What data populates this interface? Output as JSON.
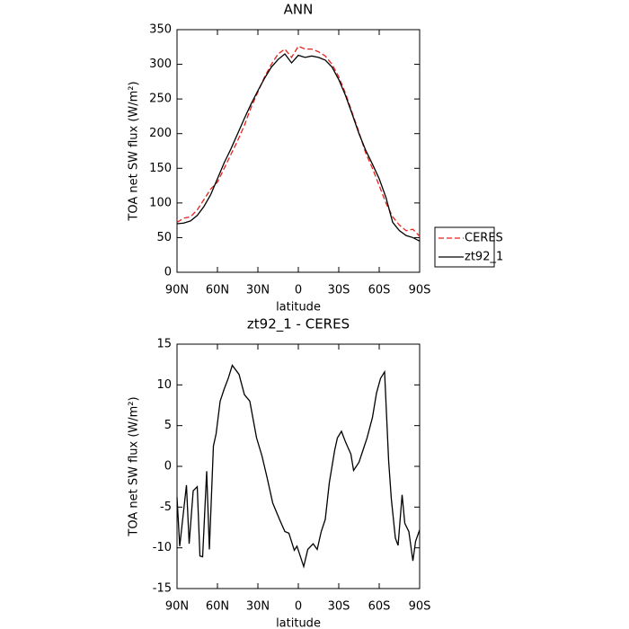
{
  "chart_data": [
    {
      "type": "line",
      "title": "ANN",
      "x_label": "latitude",
      "y_label": "TOA net SW flux (W/m²)",
      "x": [
        90,
        85,
        80,
        75,
        70,
        65,
        60,
        55,
        50,
        45,
        40,
        35,
        30,
        25,
        20,
        15,
        10,
        5,
        0,
        -5,
        -10,
        -15,
        -20,
        -25,
        -30,
        -35,
        -40,
        -45,
        -50,
        -55,
        -60,
        -65,
        -70,
        -75,
        -80,
        -85,
        -90
      ],
      "series": [
        {
          "name": "CERES",
          "color": "#e8201c",
          "dash": true,
          "values": [
            72,
            78,
            80,
            90,
            105,
            120,
            130,
            150,
            170,
            190,
            212,
            238,
            260,
            282,
            300,
            315,
            322,
            310,
            326,
            322,
            322,
            318,
            312,
            300,
            282,
            258,
            230,
            202,
            172,
            150,
            125,
            100,
            80,
            68,
            60,
            62,
            52
          ]
        },
        {
          "name": "zt92_1",
          "color": "#000000",
          "dash": false,
          "values": [
            70,
            71,
            74,
            82,
            95,
            112,
            135,
            158,
            178,
            200,
            222,
            243,
            262,
            280,
            296,
            307,
            315,
            302,
            313,
            310,
            312,
            310,
            306,
            296,
            278,
            255,
            228,
            200,
            176,
            156,
            135,
            108,
            72,
            60,
            53,
            50,
            45
          ]
        }
      ],
      "xlim": [
        90,
        -90
      ],
      "xticks": [
        {
          "value": 90,
          "label": "90N"
        },
        {
          "value": 60,
          "label": "60N"
        },
        {
          "value": 30,
          "label": "30N"
        },
        0,
        {
          "value": -30,
          "label": "30S"
        },
        {
          "value": -60,
          "label": "60S"
        },
        {
          "value": -90,
          "label": "90S"
        }
      ],
      "ylim": [
        0,
        350
      ],
      "yticks": [
        0,
        50,
        100,
        150,
        200,
        250,
        300,
        350
      ],
      "legend": "right"
    },
    {
      "type": "line",
      "title": "zt92_1 - CERES",
      "x_label": "latitude",
      "y_label": "TOA net SW flux (W/m²)",
      "x": [
        90,
        88,
        83,
        81,
        78,
        75,
        73,
        71,
        68,
        66,
        63,
        61,
        58,
        55,
        52,
        49,
        44,
        40,
        36,
        31,
        27,
        23,
        19,
        14,
        10,
        7,
        3,
        1,
        -4,
        -7,
        -11,
        -14,
        -17,
        -20,
        -23,
        -27,
        -29,
        -32,
        -35,
        -39,
        -41,
        -45,
        -48,
        -51,
        -55,
        -58,
        -61,
        -64,
        -67,
        -69,
        -72,
        -74,
        -77,
        -79,
        -82,
        -85,
        -87,
        -90
      ],
      "color": "#000000",
      "values": [
        -3.8,
        -9.8,
        -2.3,
        -9.5,
        -3,
        -2.5,
        -11,
        -11.1,
        -0.6,
        -10.2,
        2.5,
        4,
        8,
        9.5,
        10.8,
        12.4,
        11.3,
        8.8,
        8,
        3.5,
        1.3,
        -1.5,
        -4.5,
        -6.5,
        -8,
        -8.2,
        -10.3,
        -9.8,
        -12.3,
        -10.2,
        -9.5,
        -10.2,
        -8,
        -6.5,
        -2,
        2,
        3.5,
        4.3,
        3,
        1.5,
        -0.5,
        0.5,
        2,
        3.5,
        6,
        9,
        10.8,
        11.6,
        0.7,
        -4,
        -8.8,
        -9.7,
        -3.5,
        -7,
        -8,
        -11.6,
        -9.2,
        -7.8
      ],
      "xlim": [
        90,
        -90
      ],
      "xticks": [
        {
          "value": 90,
          "label": "90N"
        },
        {
          "value": 60,
          "label": "60N"
        },
        {
          "value": 30,
          "label": "30N"
        },
        0,
        {
          "value": -30,
          "label": "30S"
        },
        {
          "value": -60,
          "label": "60S"
        },
        {
          "value": -90,
          "label": "90S"
        }
      ],
      "ylim": [
        -15,
        15
      ],
      "yticks": [
        -15,
        -10,
        -5,
        0,
        5,
        10,
        15
      ]
    }
  ]
}
